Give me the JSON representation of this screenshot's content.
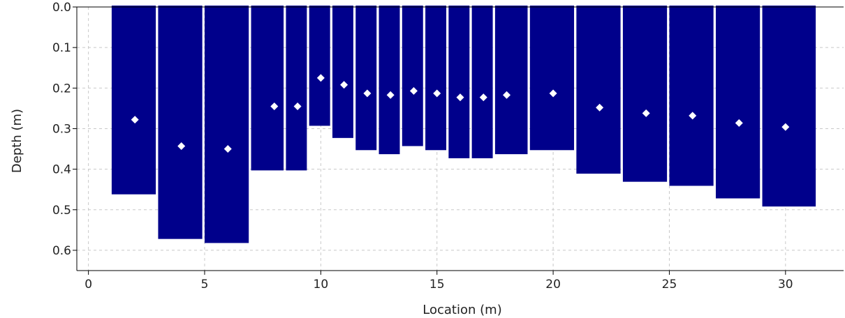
{
  "chart_data": {
    "type": "bar",
    "xlabel": "Location (m)",
    "ylabel": "Depth (m)",
    "xlim": [
      -0.5,
      32.5
    ],
    "ylim": [
      0.0,
      0.65
    ],
    "y_inverted": true,
    "grid": true,
    "x_ticks": [
      "0",
      "5",
      "10",
      "15",
      "20",
      "25",
      "30"
    ],
    "y_ticks": [
      "0.0",
      "0.1",
      "0.2",
      "0.3",
      "0.4",
      "0.5",
      "0.6"
    ],
    "bars": [
      {
        "x0": 1.0,
        "x1": 2.9,
        "depth": 0.462
      },
      {
        "x0": 3.0,
        "x1": 4.9,
        "depth": 0.572
      },
      {
        "x0": 5.0,
        "x1": 6.9,
        "depth": 0.582
      },
      {
        "x0": 7.0,
        "x1": 8.4,
        "depth": 0.403
      },
      {
        "x0": 8.5,
        "x1": 9.4,
        "depth": 0.403
      },
      {
        "x0": 9.5,
        "x1": 10.4,
        "depth": 0.293
      },
      {
        "x0": 10.5,
        "x1": 11.4,
        "depth": 0.323
      },
      {
        "x0": 11.5,
        "x1": 12.4,
        "depth": 0.353
      },
      {
        "x0": 12.5,
        "x1": 13.4,
        "depth": 0.363
      },
      {
        "x0": 13.5,
        "x1": 14.4,
        "depth": 0.343
      },
      {
        "x0": 14.5,
        "x1": 15.4,
        "depth": 0.353
      },
      {
        "x0": 15.5,
        "x1": 16.4,
        "depth": 0.373
      },
      {
        "x0": 16.5,
        "x1": 17.4,
        "depth": 0.373
      },
      {
        "x0": 17.5,
        "x1": 18.9,
        "depth": 0.363
      },
      {
        "x0": 19.0,
        "x1": 20.9,
        "depth": 0.353
      },
      {
        "x0": 21.0,
        "x1": 22.9,
        "depth": 0.411
      },
      {
        "x0": 23.0,
        "x1": 24.9,
        "depth": 0.431
      },
      {
        "x0": 25.0,
        "x1": 26.9,
        "depth": 0.441
      },
      {
        "x0": 27.0,
        "x1": 28.9,
        "depth": 0.472
      },
      {
        "x0": 29.0,
        "x1": 31.3,
        "depth": 0.492
      }
    ],
    "points": [
      {
        "x": 2,
        "y": 0.278
      },
      {
        "x": 4,
        "y": 0.343
      },
      {
        "x": 6,
        "y": 0.35
      },
      {
        "x": 8,
        "y": 0.245
      },
      {
        "x": 9,
        "y": 0.245
      },
      {
        "x": 10,
        "y": 0.175
      },
      {
        "x": 11,
        "y": 0.192
      },
      {
        "x": 12,
        "y": 0.213
      },
      {
        "x": 13,
        "y": 0.217
      },
      {
        "x": 14,
        "y": 0.207
      },
      {
        "x": 15,
        "y": 0.213
      },
      {
        "x": 16,
        "y": 0.223
      },
      {
        "x": 17,
        "y": 0.223
      },
      {
        "x": 18,
        "y": 0.217
      },
      {
        "x": 20,
        "y": 0.213
      },
      {
        "x": 22,
        "y": 0.248
      },
      {
        "x": 24,
        "y": 0.262
      },
      {
        "x": 26,
        "y": 0.268
      },
      {
        "x": 28,
        "y": 0.286
      },
      {
        "x": 30,
        "y": 0.296
      }
    ],
    "colors": {
      "bar": "#00008b",
      "point": "#ffffff",
      "grid": "#c8c8c8",
      "axis": "#000000",
      "text": "#222222"
    }
  }
}
